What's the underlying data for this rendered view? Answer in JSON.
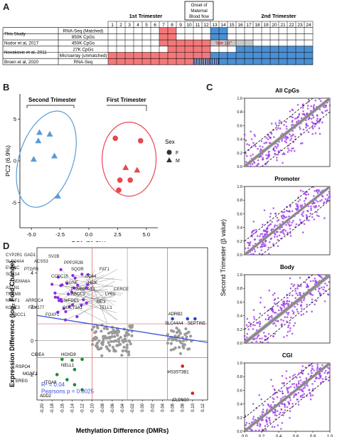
{
  "panels": {
    "a": "A",
    "b": "B",
    "c": "C",
    "d": "D"
  },
  "panelA": {
    "header_trim1": "1st Trimester",
    "header_trim2": "2nd Trimester",
    "header_onset": "Onset of Maternal Blood flow",
    "weeks": [
      "1",
      "2",
      "3",
      "4",
      "5",
      "6",
      "7",
      "8",
      "9",
      "10",
      "11",
      "12",
      "13",
      "14",
      "15",
      "16",
      "17",
      "18",
      "19",
      "20",
      "21",
      "22",
      "23",
      "24"
    ],
    "rows": [
      {
        "study": "This Study",
        "assay": "RNA-Seq (Matched)"
      },
      {
        "study": "",
        "assay": "850K CpGs"
      },
      {
        "study": "Nodor et al, 2017",
        "assay": "450K CpGs"
      },
      {
        "study": "Novakovic et al, 2011",
        "assay": "27K CpGs"
      },
      {
        "study": "",
        "assay": "Microarray (unmatched)"
      },
      {
        "study": "Broen et al, 2020",
        "assay": "RNA-Seq"
      }
    ],
    "late_label": "\"late 1st\"",
    "colors": {
      "first": "#f4787a",
      "second": "#4b8fd4",
      "late": "#c8c8c8"
    }
  },
  "panelB": {
    "second_label": "Second Trimester",
    "first_label": "First Trimester",
    "xlabel": "PC1 (51.3%)",
    "ylabel": "PC2 (6.9%)",
    "xticks": [
      "-5.0",
      "-2.5",
      "0.0",
      "2.5",
      "5.0"
    ],
    "yticks": [
      "5",
      "0",
      "-5"
    ],
    "legend_title": "Sex",
    "legend_f": "F",
    "legend_m": "M",
    "second_color": "#5b9bd5",
    "first_color": "#e8474c"
  },
  "chart_data": [
    {
      "type": "scatter",
      "xlabel": "PC1 (51.3%)",
      "ylabel": "PC2 (6.9%)",
      "xlim": [
        -6,
        6
      ],
      "ylim": [
        -8,
        8
      ],
      "series": [
        {
          "name": "Second Trimester",
          "points": [
            [
              -4.3,
              3.4
            ],
            [
              -3.4,
              3.2
            ],
            [
              -4.4,
              2.4
            ],
            [
              -3.0,
              0.6
            ],
            [
              -4.8,
              0.2
            ],
            [
              -2.7,
              -4.2
            ]
          ]
        },
        {
          "name": "First Trimester",
          "points": [
            [
              2.3,
              2.7
            ],
            [
              4.5,
              2.4
            ],
            [
              3.2,
              -0.8
            ],
            [
              4.2,
              -1.1
            ],
            [
              2.7,
              -2.3
            ],
            [
              3.6,
              -2.3
            ],
            [
              2.6,
              -3.5
            ]
          ]
        }
      ]
    },
    {
      "type": "scatter",
      "xlabel": "First Trimester (β value)",
      "ylabel": "Second Trimester (β value)",
      "xlim": [
        0,
        1
      ],
      "ylim": [
        0,
        1
      ],
      "panels": [
        "All CpGs",
        "Promoter",
        "Body",
        "CGI"
      ]
    },
    {
      "type": "scatter",
      "xlabel": "Methylation Difference (DMRs)",
      "ylabel": "Expression Difference (log2 Fold Change)",
      "xlim": [
        -0.2,
        0.12
      ],
      "ylim": [
        -3.5,
        5.5
      ],
      "annotations": [
        "R² = 0.04",
        "Pearsons p = 0.0025"
      ]
    }
  ],
  "panelC": {
    "titles": [
      "All CpGs",
      "Promoter",
      "Body",
      "CGI"
    ],
    "ylabel": "Second Trimester (β value)",
    "xlabel": "First Trimester (β value)",
    "ticks": [
      "0.0",
      "0.2",
      "0.4",
      "0.6",
      "0.8",
      "1.0"
    ]
  },
  "panelD": {
    "xlabel": "Methylation Difference (DMRs)",
    "ylabel": "Expression Difference (log₂ Fold Change)",
    "yticks": [
      "4",
      "2",
      "0",
      "-2"
    ],
    "xticks": [
      "-0.20",
      "-0.18",
      "-0.16",
      "-0.14",
      "-0.12",
      "-0.10",
      "-0.08",
      "-0.06",
      "-0.04",
      "-0.02",
      "0.00",
      "0.02",
      "0.04",
      "0.06",
      "0.08",
      "0.10",
      "0.12"
    ],
    "r2": "R² = 0.04",
    "pearson": "Pearsons p = 0.0025",
    "genes_purple": [
      "CYP2R1",
      "GAD1",
      "SV2B",
      "SLC24A4",
      "ACSS3",
      "PPP2R2B",
      "EVA1C",
      "PTGFR",
      "SQOR",
      "FAT1",
      "SOX14",
      "CCDC15",
      "CD44",
      "SEMA6A",
      "GGNE",
      "HCK",
      "ASTN1",
      "PSMB8-AS1",
      "CERCE",
      "TMEM8",
      "ABCC9",
      "LY6S",
      "NRSF1",
      "ARRDC4",
      "WFDC1",
      "ME3",
      "KCNE3",
      "FAM177",
      "GUCY1A1",
      "TELL1",
      "ABCC1",
      "FOXF1"
    ],
    "genes_blue": [
      "ADRB2",
      "SLC44A4",
      "SEPTIN5"
    ],
    "genes_green": [
      "RSPO4",
      "CIDEA",
      "HOXD9",
      "EREG",
      "NELL1",
      "MGST1",
      "ITGA8",
      "ADD2"
    ],
    "genes_red": [
      "HS3ST3B1",
      "CLDN10"
    ]
  }
}
